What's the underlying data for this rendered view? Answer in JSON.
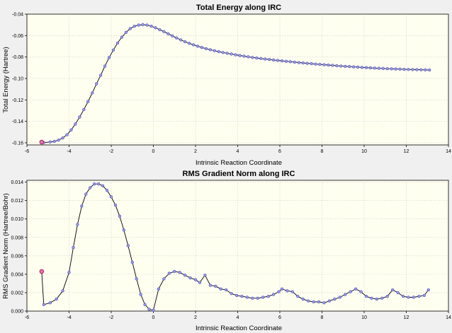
{
  "chart_data": [
    {
      "type": "line",
      "title": "Total Energy along IRC",
      "xlabel": "Intrinsic Reaction Coordinate",
      "ylabel": "Total Energy (Hartree)",
      "xlim": [
        -6,
        14
      ],
      "ylim": [
        -0.162,
        -0.04
      ],
      "xticks": [
        -6,
        -4,
        -2,
        0,
        2,
        4,
        6,
        8,
        10,
        12,
        14
      ],
      "yticks": [
        -0.16,
        -0.14,
        -0.12,
        -0.1,
        -0.08,
        -0.06,
        -0.04
      ],
      "xtick_labels": [
        "-6",
        "-4",
        "-2",
        "0",
        "2",
        "4",
        "6",
        "8",
        "10",
        "12",
        "14"
      ],
      "ytick_labels": [
        "-0.16",
        "-0.14",
        "-0.12",
        "-0.10",
        "-0.08",
        "-0.06",
        "-0.04"
      ],
      "grid": true,
      "series": [
        {
          "x": [
            -5.3,
            -5.2,
            -4.9,
            -4.7,
            -4.5,
            -4.3,
            -4.1,
            -3.9,
            -3.7,
            -3.5,
            -3.3,
            -3.1,
            -2.9,
            -2.7,
            -2.5,
            -2.3,
            -2.1,
            -1.9,
            -1.7,
            -1.5,
            -1.3,
            -1.1,
            -0.9,
            -0.7,
            -0.5,
            -0.3,
            -0.1,
            0.1,
            0.3,
            0.5,
            0.7,
            0.9,
            1.1,
            1.3,
            1.5,
            1.7,
            1.9,
            2.1,
            2.3,
            2.5,
            2.7,
            2.9,
            3.1,
            3.3,
            3.5,
            3.7,
            3.9,
            4.1,
            4.3,
            4.5,
            4.7,
            4.9,
            5.1,
            5.3,
            5.5,
            5.7,
            5.9,
            6.1,
            6.3,
            6.5,
            6.7,
            6.9,
            7.1,
            7.3,
            7.5,
            7.7,
            7.9,
            8.1,
            8.3,
            8.5,
            8.7,
            8.9,
            9.1,
            9.3,
            9.5,
            9.7,
            9.9,
            10.1,
            10.3,
            10.5,
            10.7,
            10.9,
            11.1,
            11.3,
            11.5,
            11.7,
            11.9,
            12.1,
            12.3,
            12.5,
            12.7,
            12.9,
            13.1
          ],
          "y": [
            -0.1594,
            -0.1598,
            -0.1592,
            -0.1587,
            -0.1575,
            -0.1555,
            -0.1525,
            -0.148,
            -0.1425,
            -0.136,
            -0.129,
            -0.1215,
            -0.1135,
            -0.105,
            -0.097,
            -0.0885,
            -0.0805,
            -0.0735,
            -0.067,
            -0.0615,
            -0.057,
            -0.0535,
            -0.0513,
            -0.0502,
            -0.0498,
            -0.0502,
            -0.0512,
            -0.0527,
            -0.0545,
            -0.0563,
            -0.0583,
            -0.0603,
            -0.0622,
            -0.064,
            -0.0657,
            -0.0672,
            -0.0686,
            -0.0699,
            -0.0711,
            -0.0722,
            -0.0732,
            -0.0741,
            -0.075,
            -0.0758,
            -0.0765,
            -0.0772,
            -0.0779,
            -0.0786,
            -0.0792,
            -0.0798,
            -0.0804,
            -0.0809,
            -0.0814,
            -0.0819,
            -0.0823,
            -0.0828,
            -0.0832,
            -0.0836,
            -0.084,
            -0.0844,
            -0.0848,
            -0.0852,
            -0.0855,
            -0.0859,
            -0.0862,
            -0.0866,
            -0.0869,
            -0.0872,
            -0.0875,
            -0.0878,
            -0.0881,
            -0.0884,
            -0.0887,
            -0.0889,
            -0.0892,
            -0.0894,
            -0.0897,
            -0.0899,
            -0.0901,
            -0.0903,
            -0.0905,
            -0.0907,
            -0.0909,
            -0.091,
            -0.0912,
            -0.0913,
            -0.0915,
            -0.0916,
            -0.0917,
            -0.0918,
            -0.0919,
            -0.092,
            -0.0921
          ]
        }
      ]
    },
    {
      "type": "line",
      "title": "RMS Gradient Norm along IRC",
      "xlabel": "Intrinsic Reaction Coordinate",
      "ylabel": "RMS Gradient Norm (Hartree/Bohr)",
      "xlim": [
        -6,
        14
      ],
      "ylim": [
        0,
        0.0142
      ],
      "xticks": [
        -6,
        -4,
        -2,
        0,
        2,
        4,
        6,
        8,
        10,
        12,
        14
      ],
      "yticks": [
        0,
        0.002,
        0.004,
        0.006,
        0.008,
        0.01,
        0.012,
        0.014
      ],
      "xtick_labels": [
        "-6",
        "-4",
        "-2",
        "0",
        "2",
        "4",
        "6",
        "8",
        "10",
        "12",
        "14"
      ],
      "ytick_labels": [
        "0.000",
        "0.002",
        "0.004",
        "0.006",
        "0.008",
        "0.010",
        "0.012",
        "0.014"
      ],
      "grid": true,
      "series": [
        {
          "x": [
            -5.3,
            -5.2,
            -4.9,
            -4.6,
            -4.3,
            -4.0,
            -3.8,
            -3.6,
            -3.4,
            -3.2,
            -3.0,
            -2.8,
            -2.6,
            -2.4,
            -2.2,
            -2.0,
            -1.8,
            -1.6,
            -1.4,
            -1.2,
            -1.0,
            -0.8,
            -0.6,
            -0.4,
            -0.2,
            0.0,
            0.25,
            0.5,
            0.75,
            1.0,
            1.25,
            1.5,
            1.75,
            2.0,
            2.2,
            2.45,
            2.7,
            2.95,
            3.2,
            3.45,
            3.7,
            3.95,
            4.2,
            4.45,
            4.7,
            4.95,
            5.2,
            5.45,
            5.7,
            5.95,
            6.1,
            6.35,
            6.6,
            6.85,
            7.1,
            7.35,
            7.6,
            7.85,
            8.1,
            8.35,
            8.6,
            8.85,
            9.1,
            9.35,
            9.6,
            9.85,
            10.1,
            10.35,
            10.6,
            10.85,
            11.1,
            11.35,
            11.6,
            11.85,
            12.1,
            12.35,
            12.6,
            12.85,
            13.05
          ],
          "y": [
            0.0043,
            0.0007,
            0.0009,
            0.0013,
            0.0022,
            0.0042,
            0.0069,
            0.0094,
            0.0114,
            0.0127,
            0.0134,
            0.0138,
            0.0138,
            0.0136,
            0.0131,
            0.0124,
            0.0115,
            0.0103,
            0.0088,
            0.0071,
            0.0053,
            0.0035,
            0.0018,
            0.0007,
            0.0002,
            0.0001,
            0.0024,
            0.0035,
            0.0041,
            0.0043,
            0.0042,
            0.0039,
            0.0036,
            0.0034,
            0.0031,
            0.0039,
            0.0028,
            0.0027,
            0.0024,
            0.0023,
            0.0019,
            0.0017,
            0.0016,
            0.0015,
            0.0014,
            0.0014,
            0.0015,
            0.0016,
            0.0018,
            0.0021,
            0.0024,
            0.0022,
            0.0021,
            0.0016,
            0.0013,
            0.0011,
            0.001,
            0.001,
            0.0009,
            0.0011,
            0.0013,
            0.0015,
            0.0018,
            0.0021,
            0.0024,
            0.0021,
            0.0016,
            0.0014,
            0.0013,
            0.0014,
            0.0016,
            0.0023,
            0.002,
            0.0016,
            0.0015,
            0.0015,
            0.0016,
            0.0017,
            0.0023
          ]
        }
      ]
    }
  ]
}
